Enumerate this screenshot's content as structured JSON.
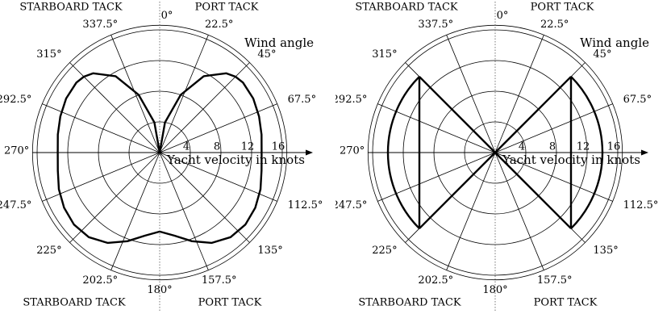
{
  "chart_data": [
    {
      "type": "polar-line",
      "panel": "left",
      "tack_labels": {
        "top_left": "STARBOARD TACK",
        "top_right": "PORT TACK",
        "bottom_left": "STARBOARD TACK",
        "bottom_right": "PORT TACK"
      },
      "wind_label": "Wind angle",
      "radial_label": "Yacht velocity in knots",
      "radial_ticks": [
        4,
        8,
        12,
        16
      ],
      "radial_max": 16,
      "angle_ticks": [
        "0°",
        "22.5°",
        "45°",
        "67.5°",
        "112.5°",
        "135°",
        "157.5°",
        "180°",
        "202.5°",
        "225°",
        "247.5°",
        "270°",
        "292.5°",
        "315°",
        "337.5°"
      ],
      "angle_tick_values": [
        0,
        22.5,
        45,
        67.5,
        112.5,
        135,
        157.5,
        180,
        202.5,
        225,
        247.5,
        270,
        292.5,
        315,
        337.5
      ],
      "series": [
        {
          "angles": [
            0,
            10,
            20,
            30,
            40,
            45,
            50,
            60,
            70,
            80,
            90,
            100,
            110,
            120,
            130,
            140,
            150,
            160,
            170,
            180
          ],
          "values": [
            0,
            4.0,
            8.0,
            11.5,
            13.5,
            14.0,
            14.2,
            14.1,
            13.8,
            13.5,
            13.3,
            13.5,
            14.0,
            14.4,
            14.6,
            14.4,
            13.6,
            12.3,
            11.0,
            10.3
          ]
        }
      ]
    },
    {
      "type": "polar-line",
      "panel": "right",
      "tack_labels": {
        "top_left": "STARBOARD TACK",
        "top_right": "PORT TACK",
        "bottom_left": "STARBOARD TACK",
        "bottom_right": "PORT TACK"
      },
      "wind_label": "Wind angle",
      "radial_label": "Yacht velocity in knots",
      "radial_ticks": [
        4,
        8,
        12,
        16
      ],
      "radial_max": 16,
      "angle_ticks": [
        "0°",
        "22.5°",
        "45°",
        "67.5°",
        "112.5°",
        "135°",
        "157.5°",
        "180°",
        "202.5°",
        "225°",
        "247.5°",
        "270°",
        "292.5°",
        "315°",
        "337.5°"
      ],
      "angle_tick_values": [
        0,
        22.5,
        45,
        67.5,
        112.5,
        135,
        157.5,
        180,
        202.5,
        225,
        247.5,
        270,
        292.5,
        315,
        337.5
      ],
      "series": [
        {
          "angles": [
            45,
            135
          ],
          "values": [
            14,
            14
          ]
        }
      ]
    }
  ]
}
